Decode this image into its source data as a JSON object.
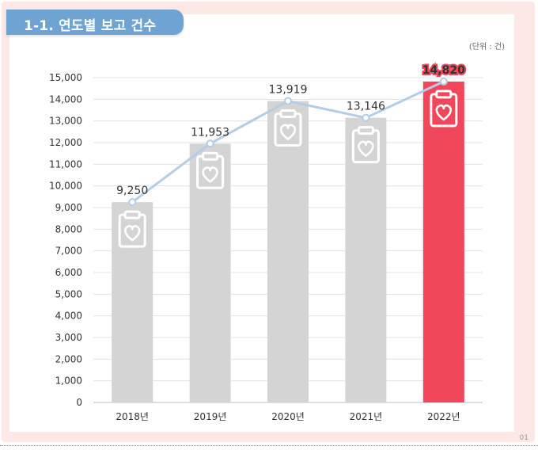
{
  "page": {
    "title": "1-1. 연도별 보고 건수",
    "unit": "(단위 : 건)",
    "page_number": "01"
  },
  "colors": {
    "bar": "#d4d4d4",
    "highlight_bar": "#f0475a",
    "line": "#b3cde6",
    "title_tab": "#6fa3d2",
    "frame": "#fde8e6"
  },
  "chart_data": {
    "type": "bar",
    "categories": [
      "2018년",
      "2019년",
      "2020년",
      "2021년",
      "2022년"
    ],
    "values": [
      9250,
      11953,
      13919,
      13146,
      14820
    ],
    "data_labels": [
      "9,250",
      "11,953",
      "13,919",
      "13,146",
      "14,820"
    ],
    "highlight_index": 4,
    "line_overlay": true,
    "bar_icon": "clipboard-heart-icon",
    "yticks": [
      "0",
      "1,000",
      "2,000",
      "3,000",
      "4,000",
      "5,000",
      "6,000",
      "7,000",
      "8,000",
      "9,000",
      "10,000",
      "11,000",
      "12,000",
      "13,000",
      "14,000",
      "15,000"
    ],
    "ylim": [
      0,
      15000
    ],
    "grid": true,
    "title": "1-1. 연도별 보고 건수",
    "xlabel": "",
    "ylabel": ""
  }
}
